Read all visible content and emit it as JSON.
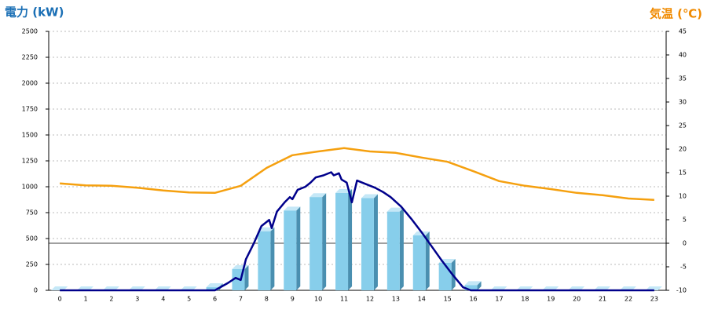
{
  "chart_data": {
    "type": "combo",
    "y_label": "電力 (kW)",
    "y2_label": "気温 (℃)",
    "xlim": [
      -0.43,
      23.46
    ],
    "xticks": [
      0,
      1,
      2,
      3,
      4,
      5,
      6,
      7,
      8,
      9,
      10,
      11,
      12,
      13,
      14,
      15,
      16,
      17,
      18,
      19,
      20,
      21,
      22,
      23
    ],
    "ylim": [
      0,
      2500
    ],
    "yticks": [
      0,
      250,
      500,
      750,
      1000,
      1250,
      1500,
      1750,
      2000,
      2250,
      2500
    ],
    "y2lim": [
      -10,
      45
    ],
    "y2ticks": [
      -10,
      -5,
      0,
      5,
      10,
      15,
      20,
      25,
      30,
      35,
      40,
      45
    ],
    "grid": true,
    "x": [
      0,
      1,
      2,
      3,
      4,
      5,
      6,
      7,
      8,
      9,
      10,
      11,
      12,
      13,
      14,
      15,
      16,
      17,
      18,
      19,
      20,
      21,
      22,
      23
    ],
    "series": [
      {
        "type": "bar",
        "color": "#87ceeb",
        "values": [
          0,
          0,
          0,
          0,
          0,
          0,
          30,
          205,
          570,
          770,
          900,
          940,
          890,
          760,
          530,
          265,
          50,
          0,
          0,
          0,
          0,
          0,
          0,
          0
        ]
      },
      {
        "type": "line",
        "color": "#00008b",
        "x": [
          0,
          6,
          6.5,
          6.8,
          7,
          7.2,
          7.5,
          7.8,
          8,
          8.1,
          8.2,
          8.4,
          8.7,
          8.9,
          9,
          9.2,
          9.5,
          9.7,
          9.9,
          10.2,
          10.5,
          10.6,
          10.8,
          10.9,
          11.1,
          11.3,
          11.5,
          11.8,
          12.2,
          12.5,
          12.8,
          13.2,
          13.6,
          14,
          14.4,
          14.8,
          15.2,
          15.6,
          15.9,
          23
        ],
        "values": [
          0,
          0,
          70,
          120,
          100,
          300,
          450,
          620,
          660,
          680,
          600,
          760,
          850,
          900,
          880,
          970,
          1000,
          1040,
          1090,
          1110,
          1140,
          1110,
          1130,
          1070,
          1040,
          850,
          1060,
          1030,
          990,
          950,
          900,
          810,
          690,
          560,
          420,
          280,
          150,
          30,
          0,
          0
        ]
      },
      {
        "type": "line",
        "axis": "y2",
        "color": "#f5a00f",
        "values": [
          12.7,
          12.3,
          12.2,
          11.8,
          11.2,
          10.8,
          10.7,
          12.2,
          16,
          18.7,
          19.5,
          20.2,
          19.5,
          19.2,
          18.2,
          17.3,
          15.3,
          13.2,
          12.2,
          11.5,
          10.7,
          10.2,
          9.5,
          9.2
        ]
      }
    ]
  }
}
